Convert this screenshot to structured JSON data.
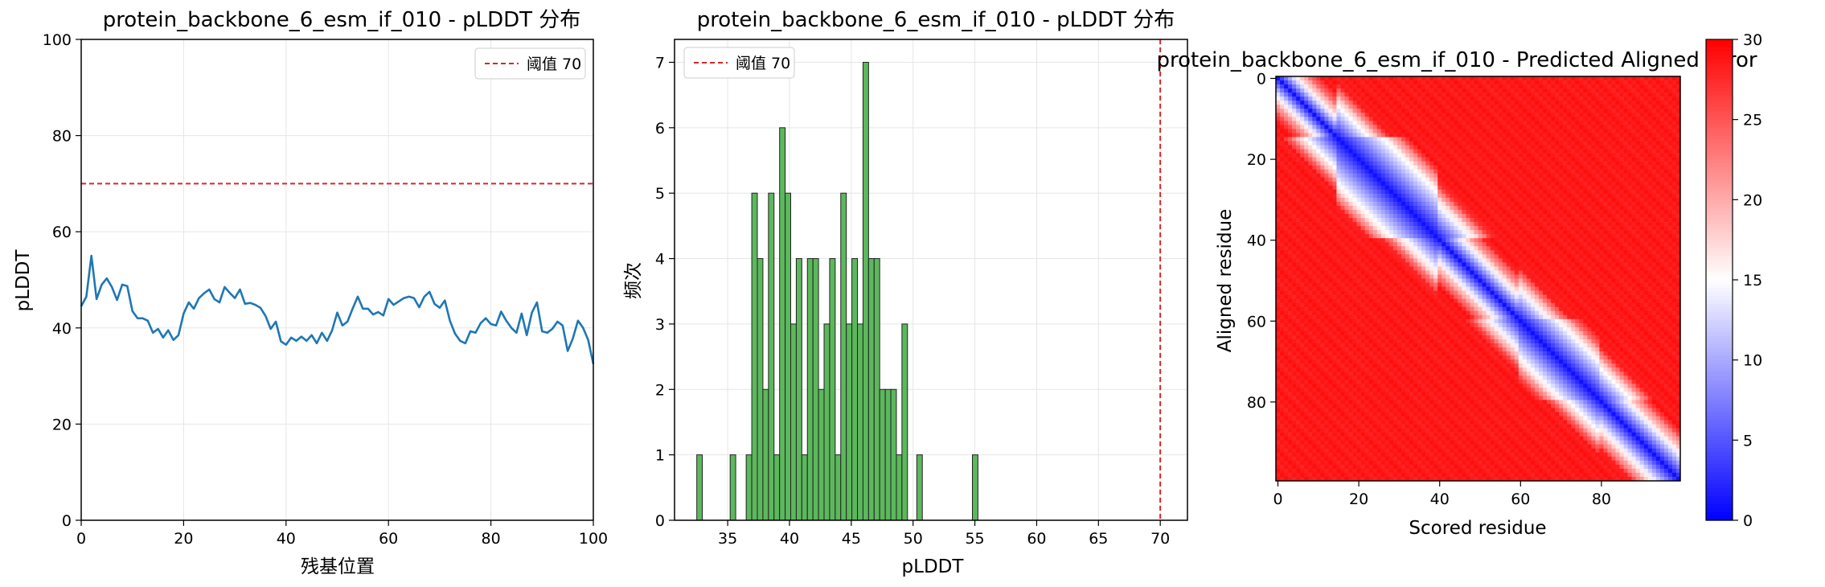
{
  "chart_data": [
    {
      "type": "line",
      "title": "protein_backbone_6_esm_if_010 - pLDDT 分布",
      "xlabel": "残基位置",
      "ylabel": "pLDDT",
      "xlim": [
        0,
        100
      ],
      "ylim": [
        0,
        100
      ],
      "x_ticks": [
        0,
        20,
        40,
        60,
        80,
        100
      ],
      "y_ticks": [
        0,
        20,
        40,
        60,
        80,
        100
      ],
      "grid": true,
      "legend_position": "top-right",
      "series": [
        {
          "name": "",
          "color": "#1f77b4",
          "x": [
            0,
            1,
            2,
            3,
            4,
            5,
            6,
            7,
            8,
            9,
            10,
            11,
            12,
            13,
            14,
            15,
            16,
            17,
            18,
            19,
            20,
            21,
            22,
            23,
            24,
            25,
            26,
            27,
            28,
            29,
            30,
            31,
            32,
            33,
            34,
            35,
            36,
            37,
            38,
            39,
            40,
            41,
            42,
            43,
            44,
            45,
            46,
            47,
            48,
            49,
            50,
            51,
            52,
            53,
            54,
            55,
            56,
            57,
            58,
            59,
            60,
            61,
            62,
            63,
            64,
            65,
            66,
            67,
            68,
            69,
            70,
            71,
            72,
            73,
            74,
            75,
            76,
            77,
            78,
            79,
            80,
            81,
            82,
            83,
            84,
            85,
            86,
            87,
            88,
            89,
            90,
            91,
            92,
            93,
            94,
            95,
            96,
            97,
            98,
            99,
            100
          ],
          "y": [
            44.5,
            46.5,
            55,
            46,
            49,
            50.3,
            48.5,
            45.8,
            49,
            48.7,
            43.5,
            42,
            42,
            41.5,
            39,
            39.8,
            38,
            39.5,
            37.5,
            38.5,
            43,
            45.3,
            44,
            46.2,
            47.2,
            48,
            46,
            45.3,
            48.5,
            47.3,
            46.2,
            48,
            45,
            45.2,
            44.8,
            44.2,
            42.5,
            39.8,
            41.3,
            37.2,
            36.5,
            38,
            37.3,
            38.2,
            37.3,
            38.5,
            36.8,
            39,
            37.3,
            39.5,
            43.2,
            40.5,
            41.3,
            44,
            46.5,
            44,
            44,
            42.8,
            43.3,
            42.6,
            46,
            44.8,
            45.5,
            46.2,
            46.5,
            46.2,
            44.3,
            46.5,
            47.5,
            45,
            44.2,
            45.7,
            41.5,
            38.8,
            37.3,
            36.8,
            39.3,
            39,
            41,
            42,
            40.8,
            40.5,
            43.4,
            41.5,
            40,
            39,
            43,
            38.5,
            43.2,
            45.3,
            39.3,
            39,
            39.8,
            41.3,
            40.5,
            35.2,
            37.8,
            41.5,
            40,
            37.5,
            32.5
          ]
        }
      ],
      "reference_line": {
        "value": 70,
        "label": "阈值 70",
        "color": "#d62728",
        "orientation": "horizontal"
      }
    },
    {
      "type": "bar",
      "subtype": "histogram",
      "title": "protein_backbone_6_esm_if_010 - pLDDT 分布",
      "xlabel": "pLDDT",
      "ylabel": "频次",
      "xlim": [
        30.7,
        72.2
      ],
      "ylim": [
        0,
        7.35
      ],
      "x_ticks": [
        35,
        40,
        45,
        50,
        55,
        60,
        65,
        70
      ],
      "y_ticks": [
        0,
        1,
        2,
        3,
        4,
        5,
        6,
        7
      ],
      "grid": true,
      "legend_position": "top-left",
      "bar_color": "#5cb85c",
      "bin_width": 0.45,
      "bin_starts": [
        32.5,
        35.2,
        36.5,
        36.95,
        37.4,
        37.85,
        38.3,
        38.75,
        39.2,
        39.65,
        40.1,
        40.55,
        41.0,
        41.45,
        41.9,
        42.35,
        42.8,
        43.25,
        43.7,
        44.15,
        44.6,
        45.05,
        45.5,
        45.95,
        46.4,
        46.85,
        47.3,
        47.75,
        48.2,
        48.65,
        49.1,
        50.3,
        54.8
      ],
      "counts": [
        1,
        1,
        1,
        5,
        4,
        2,
        5,
        1,
        6,
        5,
        3,
        4,
        1,
        4,
        4,
        2,
        3,
        4,
        1,
        5,
        3,
        4,
        3,
        7,
        4,
        4,
        2,
        2,
        2,
        1,
        3,
        1,
        1
      ],
      "reference_line": {
        "value": 70,
        "label": "阈值 70",
        "color": "#d62728",
        "orientation": "vertical"
      }
    },
    {
      "type": "heatmap",
      "title": "protein_backbone_6_esm_if_010 - Predicted Aligned Error",
      "xlabel": "Scored residue",
      "ylabel": "Aligned residue",
      "size": 100,
      "x_ticks": [
        0,
        20,
        40,
        60,
        80
      ],
      "y_ticks": [
        0,
        20,
        40,
        60,
        80
      ],
      "colormap": "bwr",
      "colorbar": {
        "min": 0,
        "max": 30,
        "ticks": [
          0,
          5,
          10,
          15,
          20,
          25,
          30
        ]
      },
      "value_model": {
        "diagonal_value": 1,
        "gradient_per_residue": 1.2,
        "background_value": 28,
        "diagonal_band_halfwidth_by_block": [
          {
            "from": 0,
            "to": 15,
            "halfwidth": 5
          },
          {
            "from": 15,
            "to": 40,
            "halfwidth": 12
          },
          {
            "from": 40,
            "to": 60,
            "halfwidth": 6
          },
          {
            "from": 60,
            "to": 80,
            "halfwidth": 10
          },
          {
            "from": 80,
            "to": 100,
            "halfwidth": 7
          }
        ]
      }
    }
  ]
}
